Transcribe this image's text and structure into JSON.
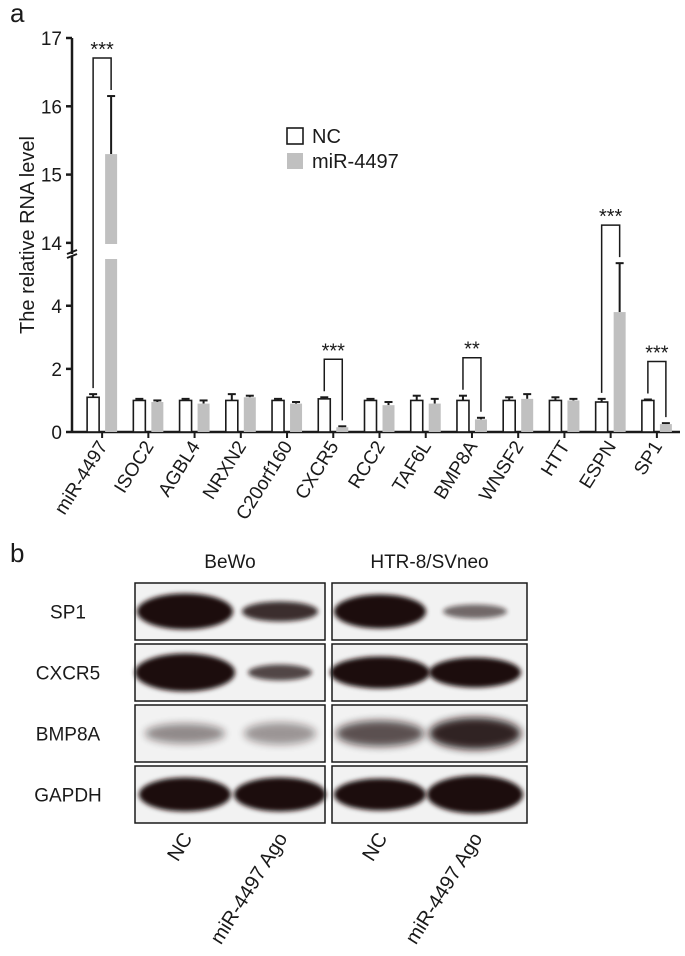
{
  "panel_labels": [
    "a",
    "b"
  ],
  "chart_data": {
    "type": "bar",
    "y_label": "The relative RNA level",
    "categories": [
      "miR-4497",
      "ISOC2",
      "AGBL4",
      "NRXN2",
      "C20orf160",
      "CXCR5",
      "RCC2",
      "TAF6L",
      "BMP8A",
      "WNSF2",
      "HTT",
      "ESPN",
      "SP1"
    ],
    "series": [
      {
        "name": "NC",
        "color": "#ffffff",
        "values": [
          1.1,
          1.0,
          1.0,
          1.0,
          1.0,
          1.05,
          1.0,
          1.0,
          1.0,
          1.0,
          1.0,
          0.95,
          1.0
        ],
        "errors": [
          0.1,
          0.05,
          0.05,
          0.2,
          0.05,
          0.05,
          0.05,
          0.15,
          0.15,
          0.1,
          0.1,
          0.1,
          0.03
        ]
      },
      {
        "name": "miR-4497",
        "color": "#c0c0c0",
        "values": [
          15.3,
          0.95,
          0.9,
          1.1,
          0.9,
          0.15,
          0.85,
          0.9,
          0.4,
          1.05,
          1.0,
          3.8,
          0.25
        ],
        "errors": [
          0.85,
          0.05,
          0.1,
          0.05,
          0.05,
          0.03,
          0.1,
          0.15,
          0.05,
          0.15,
          0.05,
          1.55,
          0.03
        ]
      }
    ],
    "ylim": [
      0,
      17
    ],
    "axis_break": [
      5.45,
      13.72
    ],
    "yticks": [
      0,
      2,
      4,
      14,
      15,
      16,
      17
    ],
    "annotations": [
      {
        "category": "miR-4497",
        "text": "***"
      },
      {
        "category": "CXCR5",
        "text": "***"
      },
      {
        "category": "BMP8A",
        "text": "**"
      },
      {
        "category": "ESPN",
        "text": "***"
      },
      {
        "category": "SP1",
        "text": "***"
      }
    ]
  },
  "blot": {
    "cell_lines": [
      "BeWo",
      "HTR-8/SVneo"
    ],
    "proteins": [
      "SP1",
      "CXCR5",
      "BMP8A",
      "GAPDH"
    ],
    "lanes": [
      "NC",
      "miR-4497 Ago",
      "NC",
      "miR-4497 Ago"
    ]
  }
}
